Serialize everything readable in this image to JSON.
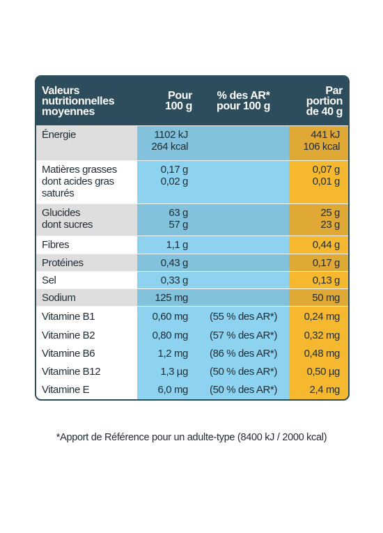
{
  "header": {
    "columns": [
      [
        "Valeurs",
        "nutritionnelles",
        "moyennes"
      ],
      [
        "Pour",
        "100 g"
      ],
      [
        "% des AR*",
        "pour 100 g"
      ],
      [
        "Par",
        "portion",
        "de 40 g"
      ]
    ]
  },
  "table": {
    "rows": [
      {
        "shaded": true,
        "cells": [
          [
            "Énergie"
          ],
          [
            "1102 kJ",
            "264 kcal"
          ],
          [],
          [
            "441 kJ",
            "106 kcal"
          ]
        ],
        "height": 50
      },
      {
        "shaded": false,
        "cells": [
          [
            "Matières grasses",
            "dont acides gras",
            "saturés"
          ],
          [
            "0,17 g",
            "0,02 g"
          ],
          [],
          [
            "0,07 g",
            "0,01 g"
          ]
        ],
        "height": 62
      },
      {
        "shaded": true,
        "cells": [
          [
            "Glucides",
            "dont sucres"
          ],
          [
            "63 g",
            "57 g"
          ],
          [],
          [
            "25 g",
            "23 g"
          ]
        ],
        "height": 46
      },
      {
        "shaded": false,
        "cells": [
          [
            "Fibres"
          ],
          [
            "1,1 g"
          ],
          [],
          [
            "0,44 g"
          ]
        ],
        "height": 26
      },
      {
        "shaded": true,
        "cells": [
          [
            "Protéines"
          ],
          [
            "0,43 g"
          ],
          [],
          [
            "0,17 g"
          ]
        ],
        "height": 25
      },
      {
        "shaded": false,
        "cells": [
          [
            "Sel"
          ],
          [
            "0,33 g"
          ],
          [],
          [
            "0,13 g"
          ]
        ],
        "height": 25
      },
      {
        "shaded": true,
        "cells": [
          [
            "Sodium"
          ],
          [
            "125 mg"
          ],
          [],
          [
            "50 mg"
          ]
        ],
        "height": 25
      },
      {
        "shaded": false,
        "vitamin": true,
        "cells": [
          [
            "Vitamine B1"
          ],
          [
            "0,60 mg"
          ],
          [
            "(55 % des AR*)"
          ],
          [
            "0,24 mg"
          ]
        ],
        "height": 29
      },
      {
        "shaded": false,
        "vitamin": true,
        "cells": [
          [
            "Vitamine B2"
          ],
          [
            "0,80 mg"
          ],
          [
            "(57 % des AR*)"
          ],
          [
            "0,32 mg"
          ]
        ],
        "height": 26
      },
      {
        "shaded": false,
        "vitamin": true,
        "cells": [
          [
            "Vitamine B6"
          ],
          [
            "1,2 mg"
          ],
          [
            "(86 % des AR*)"
          ],
          [
            "0,48 mg"
          ]
        ],
        "height": 26
      },
      {
        "shaded": false,
        "vitamin": true,
        "cells": [
          [
            "Vitamine B12"
          ],
          [
            "1,3 µg"
          ],
          [
            "(50 % des AR*)"
          ],
          [
            "0,50 µg"
          ]
        ],
        "height": 26
      },
      {
        "shaded": false,
        "vitamin": true,
        "cells": [
          [
            "Vitamine E"
          ],
          [
            "6,0 mg"
          ],
          [
            "(50 % des AR*)"
          ],
          [
            "2,4 mg"
          ]
        ],
        "height": 26
      }
    ]
  },
  "footnote": "*Apport de Référence pour un adulte-type (8400 kJ / 2000 kcal)"
}
